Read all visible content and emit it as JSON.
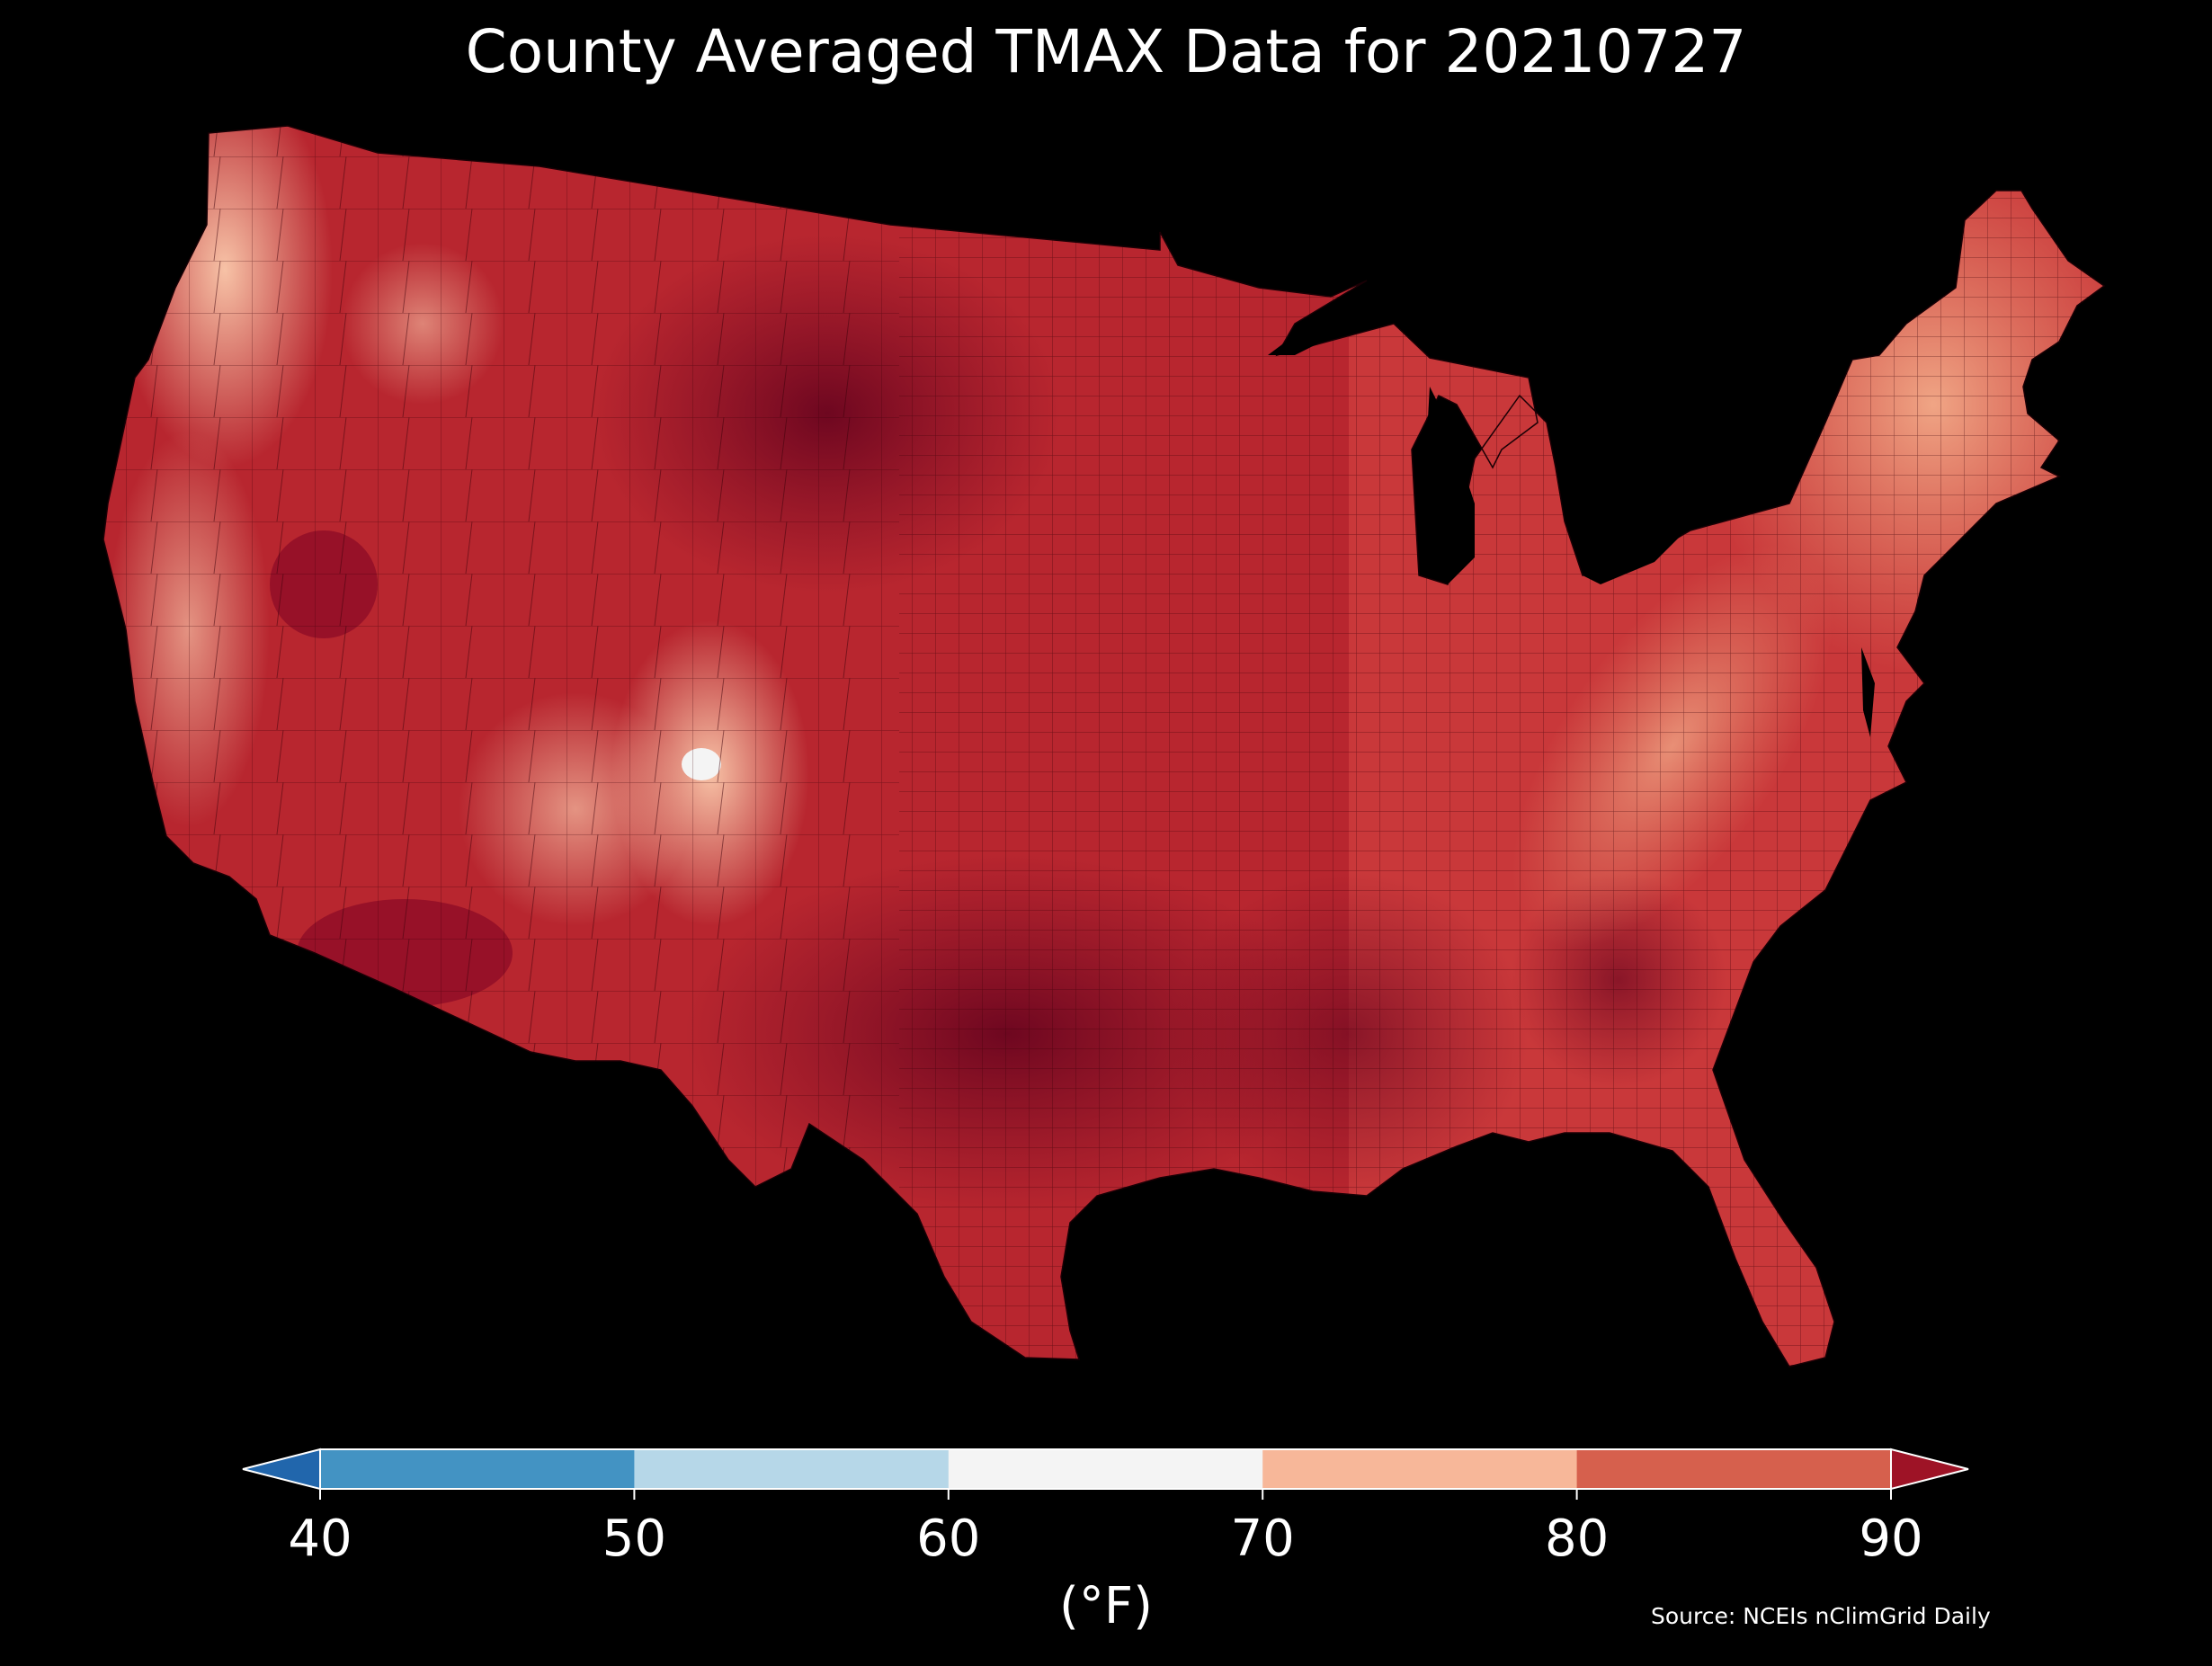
{
  "title": "County Averaged TMAX Data for 20210727",
  "colorbar": {
    "ticks": [
      "40",
      "50",
      "60",
      "70",
      "80",
      "90"
    ],
    "units": "(°F)",
    "bins": [
      {
        "range": "<40",
        "color": "#2166ac"
      },
      {
        "range": "40-50",
        "color": "#4393c3"
      },
      {
        "range": "50-60",
        "color": "#b6d7e8"
      },
      {
        "range": "60-70",
        "color": "#f4f4f4"
      },
      {
        "range": "70-80",
        "color": "#f7b799"
      },
      {
        "range": "80-90",
        "color": "#d6604d"
      },
      {
        "range": ">90",
        "color": "#9e1326"
      }
    ]
  },
  "source": "Source: NCEIs nClimGrid Daily",
  "map": {
    "region": "Contiguous United States (counties)",
    "colors": {
      "background": "#000000",
      "hottest": "#7a0a22",
      "hot": "#a8172b",
      "warm": "#c9383a",
      "mild": "#e6886a",
      "cool": "#f7c2a6",
      "coolest": "#f4f4f4"
    }
  }
}
